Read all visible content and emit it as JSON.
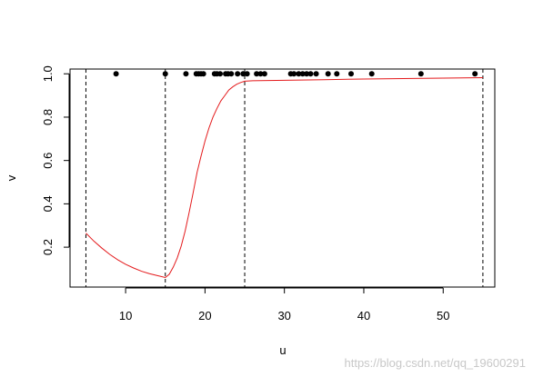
{
  "chart_data": {
    "type": "scatter",
    "title": "",
    "xlabel": "u",
    "ylabel": "v",
    "xlim": [
      3,
      56.5
    ],
    "ylim": [
      0.016,
      1.022
    ],
    "x_ticks": [
      10,
      20,
      30,
      40,
      50
    ],
    "y_ticks": [
      0.2,
      0.4,
      0.6,
      0.8,
      1.0
    ],
    "y_tick_labels": [
      "0.2",
      "0.4",
      "0.6",
      "0.8",
      "1.0"
    ],
    "grid": false,
    "legend": "none",
    "vertical_lines": [
      5,
      15,
      25,
      55
    ],
    "points": {
      "color": "#000000",
      "x": [
        8.8,
        15.0,
        17.6,
        18.9,
        19.2,
        19.5,
        19.8,
        21.2,
        21.5,
        21.9,
        22.6,
        22.9,
        23.3,
        24.1,
        24.8,
        25.3,
        26.5,
        27.0,
        27.5,
        30.8,
        31.2,
        31.8,
        32.3,
        32.8,
        33.3,
        34.0,
        35.5,
        36.6,
        38.4,
        41.0,
        47.2,
        54.0
      ],
      "y": [
        1,
        1,
        1,
        1,
        1,
        1,
        1,
        1,
        1,
        1,
        1,
        1,
        1,
        1,
        1,
        1,
        1,
        1,
        1,
        1,
        1,
        1,
        1,
        1,
        1,
        1,
        1,
        1,
        1,
        1,
        1,
        1
      ]
    },
    "fitted_curve": {
      "color": "#e41a1c",
      "x": [
        5,
        6,
        7,
        8,
        9,
        10,
        11,
        12,
        13,
        14,
        15,
        15.5,
        16,
        16.5,
        17,
        17.5,
        18,
        18.5,
        19,
        19.5,
        20,
        20.5,
        21,
        21.5,
        22,
        22.5,
        23,
        23.5,
        24,
        24.5,
        25,
        26,
        28,
        30,
        35,
        40,
        45,
        50,
        55
      ],
      "y": [
        0.265,
        0.228,
        0.196,
        0.167,
        0.142,
        0.121,
        0.104,
        0.089,
        0.078,
        0.069,
        0.06,
        0.075,
        0.108,
        0.15,
        0.205,
        0.275,
        0.36,
        0.45,
        0.545,
        0.62,
        0.69,
        0.75,
        0.8,
        0.84,
        0.875,
        0.9,
        0.925,
        0.94,
        0.952,
        0.96,
        0.966,
        0.968,
        0.969,
        0.97,
        0.973,
        0.976,
        0.978,
        0.98,
        0.982
      ]
    }
  },
  "watermark": "https://blog.csdn.net/qq_19600291"
}
